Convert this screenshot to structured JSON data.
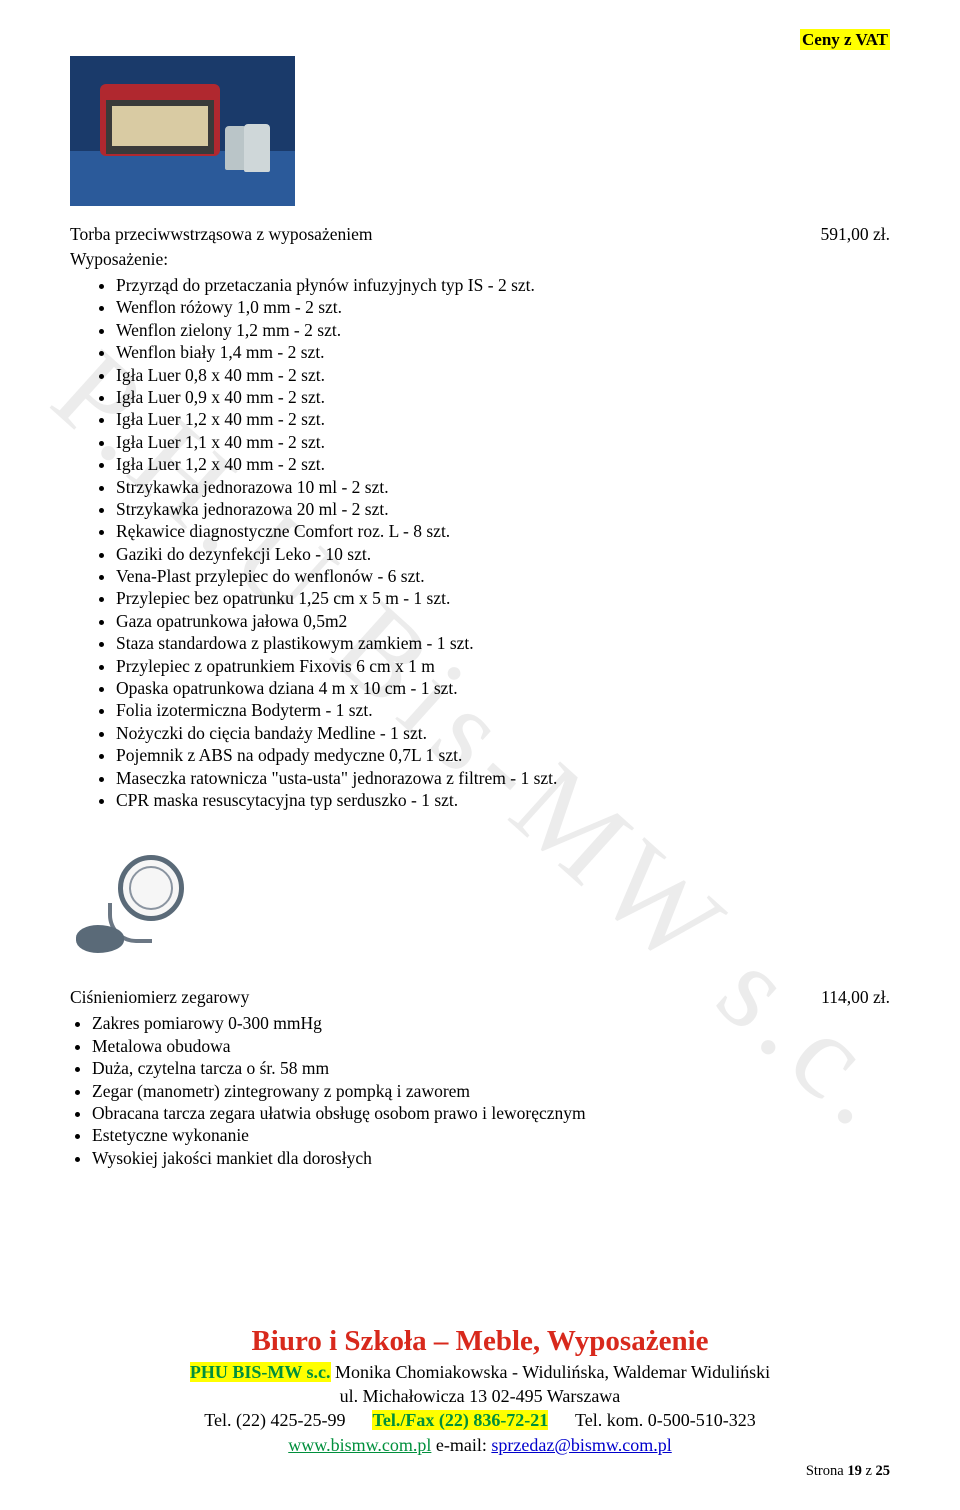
{
  "header": {
    "vat_label": "Ceny z VAT"
  },
  "watermark": "P.H.U Bis-MW s.c.",
  "product1": {
    "title": "Torba przeciwwstrząsowa z wyposażeniem",
    "price": "591,00 zł.",
    "spec_heading": "Wyposażenie:",
    "items": [
      "Przyrząd do przetaczania płynów infuzyjnych typ IS - 2 szt.",
      "Wenflon różowy 1,0 mm - 2 szt.",
      "Wenflon zielony 1,2 mm - 2 szt.",
      "Wenflon biały 1,4 mm - 2 szt.",
      "Igła Luer 0,8 x 40 mm - 2 szt.",
      "Igła Luer 0,9 x 40 mm - 2 szt.",
      "Igła Luer 1,2 x 40 mm - 2 szt.",
      "Igła Luer 1,1 x 40 mm - 2 szt.",
      "Igła Luer 1,2 x 40 mm - 2 szt.",
      "Strzykawka jednorazowa 10 ml - 2 szt.",
      "Strzykawka jednorazowa 20 ml - 2 szt.",
      "Rękawice diagnostyczne Comfort roz. L - 8 szt.",
      "Gaziki do dezynfekcji Leko - 10 szt.",
      "Vena-Plast przylepiec do wenflonów - 6 szt.",
      "Przylepiec bez opatrunku 1,25 cm x 5 m - 1 szt.",
      "Gaza opatrunkowa jałowa 0,5m2",
      "Staza standardowa z plastikowym zamkiem - 1 szt.",
      "Przylepiec z opatrunkiem Fixovis 6 cm x 1 m",
      "Opaska opatrunkowa dziana 4 m x 10 cm - 1 szt.",
      "Folia izotermiczna Bodyterm - 1 szt.",
      "Nożyczki do cięcia bandaży Medline - 1 szt.",
      "Pojemnik z ABS na odpady medyczne 0,7L  1 szt.",
      "Maseczka ratownicza \"usta-usta\" jednorazowa z filtrem - 1 szt.",
      "CPR maska resuscytacyjna typ serduszko - 1 szt."
    ]
  },
  "product2": {
    "title": "Ciśnieniomierz zegarowy",
    "price": "114,00 zł.",
    "items": [
      "Zakres pomiarowy 0-300 mmHg",
      "Metalowa obudowa",
      "Duża, czytelna tarcza o śr. 58 mm",
      "Zegar (manometr) zintegrowany z pompką i zaworem",
      "Obracana tarcza zegara ułatwia obsługę osobom prawo i leworęcznym",
      "Estetyczne wykonanie",
      "Wysokiej jakości mankiet dla dorosłych"
    ]
  },
  "footer": {
    "h1": "Biuro i Szkoła – Meble, Wyposażenie",
    "company_hl": "PHU BIS-MW s.c.",
    "names": " Monika Chomiakowska - Widulińska, Waldemar Widuliński",
    "addr": "ul. Michałowicza 13     02-495 Warszawa",
    "tel1": "Tel. (22) 425-25-99",
    "telfax": "Tel./Fax (22) 836-72-21",
    "telkom": "Tel. kom. 0-500-510-323",
    "web": "www.bismw.com.pl",
    "email_label": "    e-mail: ",
    "email": "sprzedaz@bismw.com.pl",
    "page_prefix": "Strona ",
    "page_cur": "19",
    "page_mid": " z ",
    "page_total": "25"
  }
}
